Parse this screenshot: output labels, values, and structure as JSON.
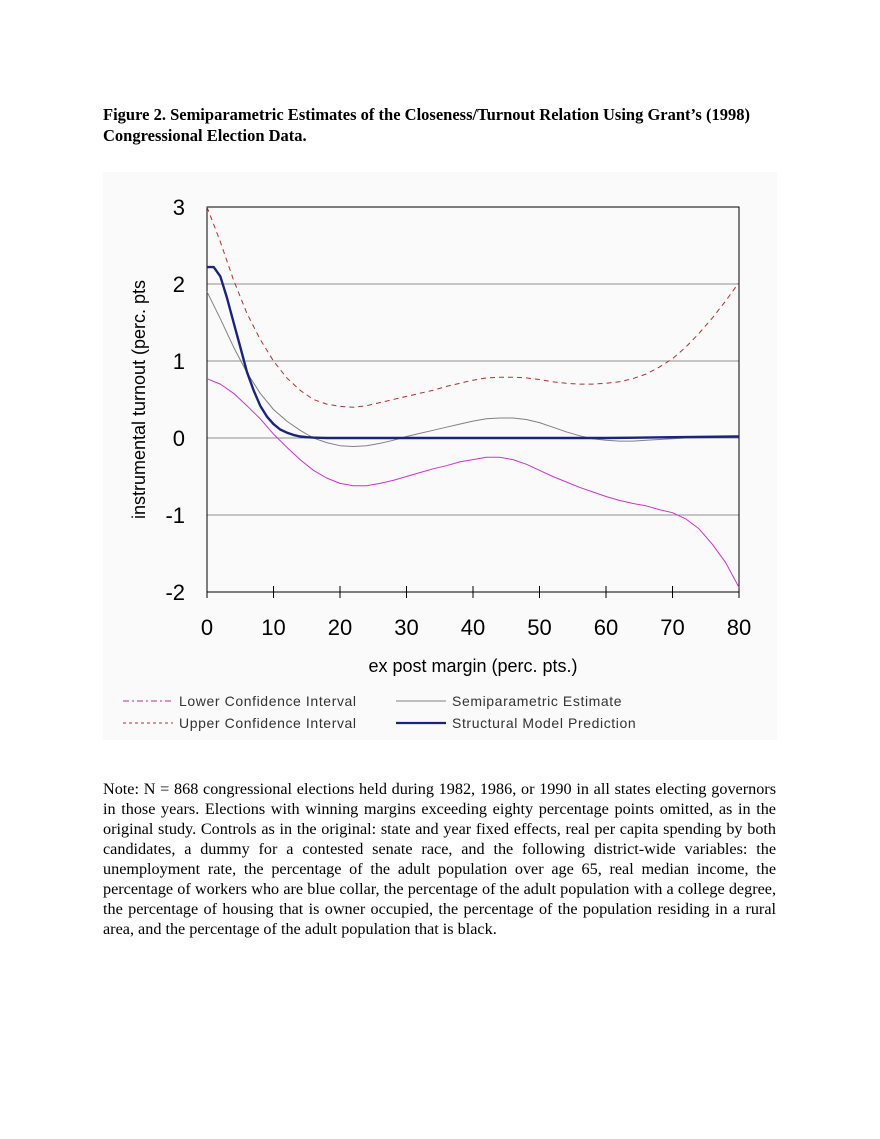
{
  "caption": {
    "line1": "Figure 2. Semiparametric Estimates of the Closeness/Turnout Relation Using Grant’s (1998)",
    "line2": "Congressional Election Data."
  },
  "note": {
    "text": "Note: N = 868 congressional elections held during 1982, 1986, or 1990 in all states electing governors in those years.  Elections with winning margins exceeding eighty percentage points omitted, as in the original study.  Controls as in the original: state and year fixed effects, real per capita spending by both candidates, a dummy for a contested senate race, and the following district-wide variables: the unemployment rate, the percentage of the adult population over age 65, real median income, the percentage of workers who are blue collar, the percentage of the adult population with a college degree, the percentage of housing that is owner occupied, the percentage of the population residing in a rural area, and the percentage of the adult population that is black."
  },
  "chart_data": {
    "type": "line",
    "title": "",
    "xlabel": "ex post margin (perc. pts.)",
    "ylabel": "instrumental turnout (perc. pts",
    "xlim": [
      0,
      80
    ],
    "ylim": [
      -2,
      3
    ],
    "x_ticks": [
      "0",
      "10",
      "20",
      "30",
      "40",
      "50",
      "60",
      "70",
      "80"
    ],
    "y_ticks": [
      "-2",
      "-1",
      "0",
      "1",
      "2",
      "3"
    ],
    "grid": "horizontal",
    "legend_position": "bottom",
    "series": [
      {
        "name": "Lower Confidence Interval",
        "color": "#cc33cc",
        "style": "solid",
        "x": [
          0,
          2,
          4,
          6,
          8,
          10,
          12,
          14,
          16,
          18,
          20,
          22,
          24,
          26,
          28,
          30,
          32,
          34,
          36,
          38,
          40,
          42,
          44,
          46,
          48,
          50,
          52,
          54,
          56,
          58,
          60,
          62,
          64,
          66,
          68,
          70,
          72,
          74,
          76,
          78,
          80
        ],
        "y": [
          0.77,
          0.7,
          0.58,
          0.42,
          0.25,
          0.05,
          -0.12,
          -0.28,
          -0.42,
          -0.52,
          -0.59,
          -0.62,
          -0.62,
          -0.59,
          -0.55,
          -0.5,
          -0.45,
          -0.4,
          -0.36,
          -0.31,
          -0.28,
          -0.25,
          -0.25,
          -0.28,
          -0.34,
          -0.42,
          -0.5,
          -0.57,
          -0.64,
          -0.7,
          -0.76,
          -0.81,
          -0.85,
          -0.88,
          -0.93,
          -0.97,
          -1.05,
          -1.18,
          -1.38,
          -1.62,
          -1.94
        ]
      },
      {
        "name": "Upper Confidence Interval",
        "color": "#b03030",
        "style": "dashed",
        "x": [
          0,
          2,
          4,
          6,
          8,
          10,
          12,
          14,
          16,
          18,
          20,
          22,
          24,
          26,
          28,
          30,
          32,
          34,
          36,
          38,
          40,
          42,
          44,
          46,
          48,
          50,
          52,
          54,
          56,
          58,
          60,
          62,
          64,
          66,
          68,
          70,
          72,
          74,
          76,
          78,
          80
        ],
        "y": [
          3.0,
          2.55,
          2.05,
          1.62,
          1.28,
          1.0,
          0.78,
          0.62,
          0.5,
          0.44,
          0.41,
          0.4,
          0.42,
          0.46,
          0.5,
          0.54,
          0.58,
          0.62,
          0.67,
          0.71,
          0.75,
          0.78,
          0.79,
          0.79,
          0.78,
          0.76,
          0.73,
          0.71,
          0.7,
          0.7,
          0.71,
          0.73,
          0.77,
          0.83,
          0.92,
          1.03,
          1.18,
          1.36,
          1.56,
          1.78,
          2.02
        ]
      },
      {
        "name": "Semiparametric Estimate",
        "color": "#808080",
        "style": "solid",
        "x": [
          0,
          2,
          4,
          6,
          8,
          10,
          12,
          14,
          16,
          18,
          20,
          22,
          24,
          26,
          28,
          30,
          32,
          34,
          36,
          38,
          40,
          42,
          44,
          46,
          48,
          50,
          52,
          54,
          56,
          58,
          60,
          62,
          64,
          66,
          68,
          70,
          72,
          74,
          76,
          78,
          80
        ],
        "y": [
          1.9,
          1.55,
          1.18,
          0.85,
          0.58,
          0.37,
          0.22,
          0.1,
          0.0,
          -0.06,
          -0.1,
          -0.11,
          -0.1,
          -0.07,
          -0.03,
          0.02,
          0.06,
          0.1,
          0.14,
          0.18,
          0.22,
          0.25,
          0.26,
          0.26,
          0.24,
          0.2,
          0.14,
          0.08,
          0.03,
          -0.01,
          -0.03,
          -0.04,
          -0.04,
          -0.03,
          -0.02,
          -0.01,
          0.0,
          0.01,
          0.01,
          0.02,
          0.02
        ]
      },
      {
        "name": "Structural Model Prediction",
        "color": "#1a237e",
        "style": "solid",
        "x": [
          0,
          1,
          2,
          3,
          4,
          5,
          6,
          7,
          8,
          9,
          10,
          11,
          12,
          13,
          14,
          15,
          16,
          17,
          18,
          20,
          25,
          30,
          40,
          50,
          60,
          70,
          80
        ],
        "y": [
          2.22,
          2.22,
          2.1,
          1.82,
          1.5,
          1.18,
          0.86,
          0.62,
          0.42,
          0.28,
          0.18,
          0.11,
          0.07,
          0.04,
          0.02,
          0.01,
          0.005,
          0.002,
          0.0,
          0.0,
          0.0,
          0.0,
          0.0,
          0.0,
          0.0,
          0.01,
          0.02
        ]
      }
    ]
  }
}
